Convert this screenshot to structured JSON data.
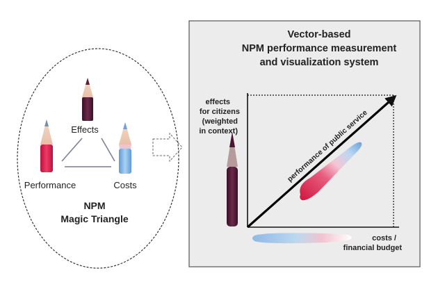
{
  "left_panel": {
    "nodes": {
      "effects": "Effects",
      "performance": "Performance",
      "costs": "Costs"
    },
    "caption_line1": "NPM",
    "caption_line2": "Magic Triangle"
  },
  "right_panel": {
    "title_line1": "Vector-based",
    "title_line2": "NPM performance measurement",
    "title_line3": "and visualization system",
    "y_axis_label": [
      "effects",
      "for citizens",
      "(weighted",
      "in context)"
    ],
    "x_axis_label": [
      "costs /",
      "financial budget"
    ],
    "vector_label": "performance of public service"
  },
  "colors": {
    "effects_pencil": "#5a1f3a",
    "performance_pencil": "#d8244f",
    "costs_pencil": "#7fb6e6",
    "panel_bg": "#ececec",
    "panel_border": "#555555"
  }
}
